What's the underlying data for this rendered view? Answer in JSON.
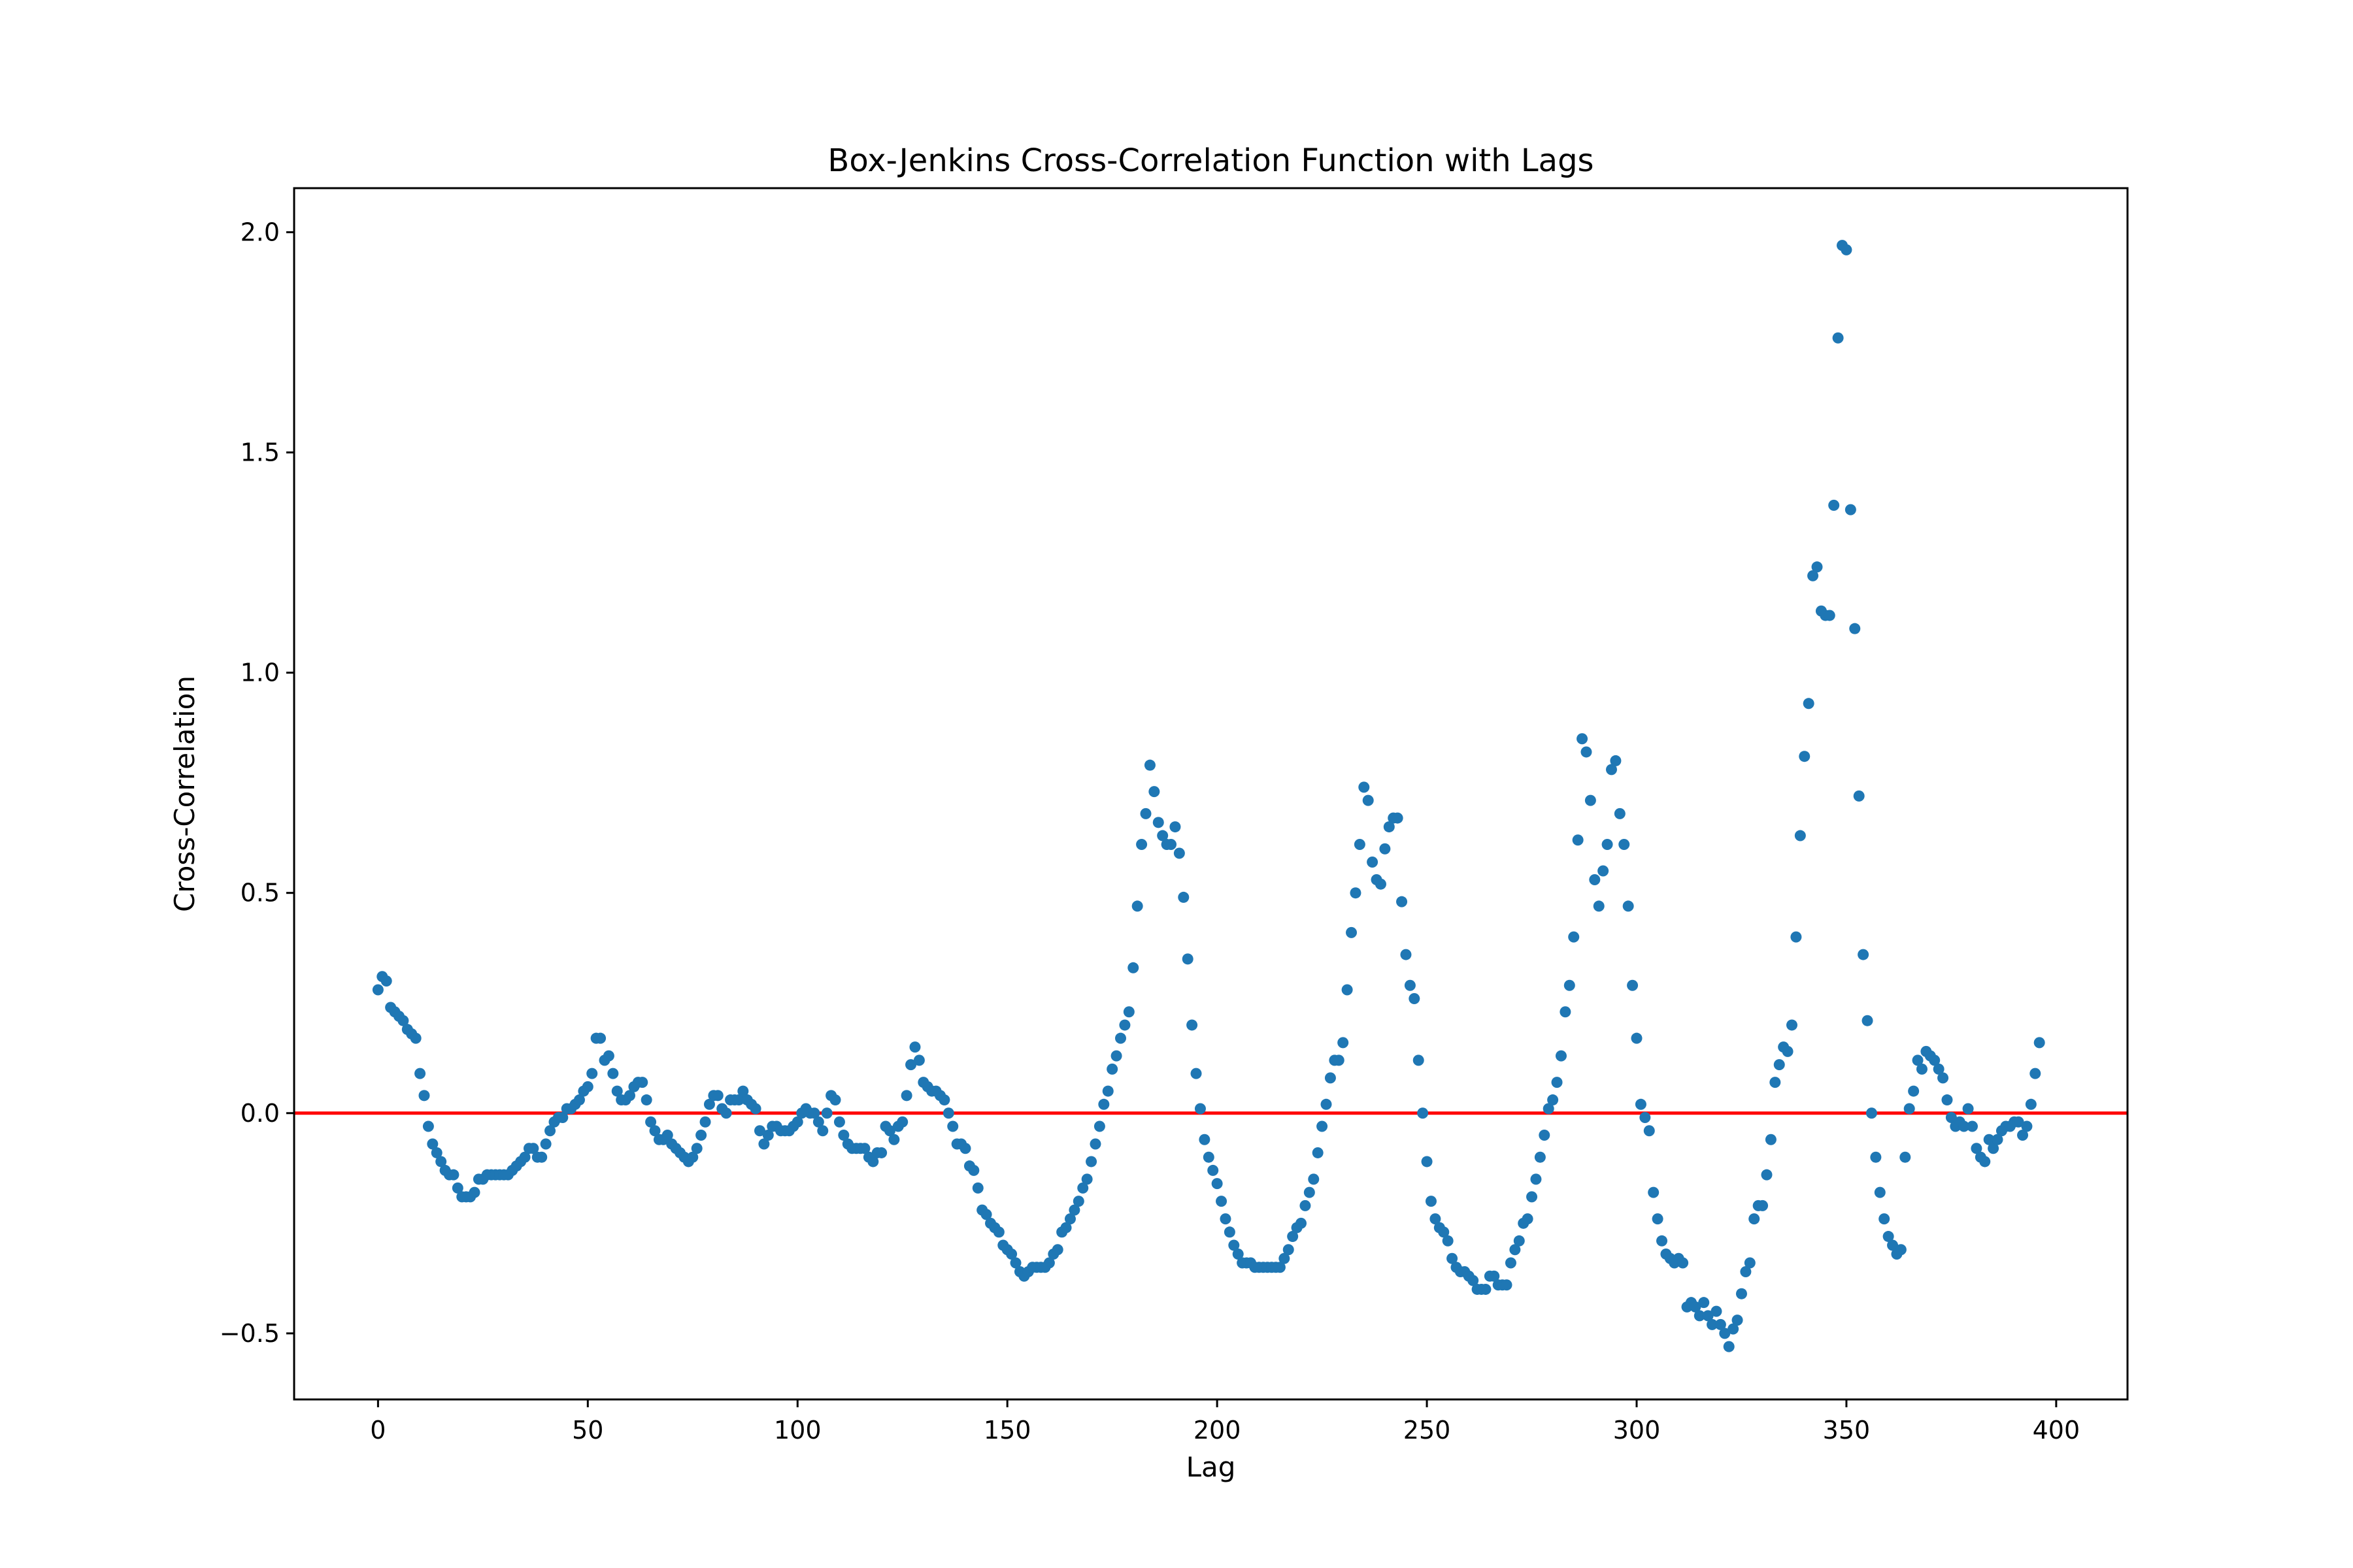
{
  "chart_data": {
    "type": "scatter",
    "title": "Box-Jenkins Cross-Correlation Function with Lags",
    "xlabel": "Lag",
    "ylabel": "Cross-Correlation",
    "xlim": [
      -20,
      417
    ],
    "ylim": [
      -0.65,
      2.1
    ],
    "xticks": [
      0,
      50,
      100,
      150,
      200,
      250,
      300,
      350,
      400
    ],
    "xtick_labels": [
      "0",
      "50",
      "100",
      "150",
      "200",
      "250",
      "300",
      "350",
      "400"
    ],
    "yticks": [
      -0.5,
      0.0,
      0.5,
      1.0,
      1.5,
      2.0
    ],
    "ytick_labels": [
      "−0.5",
      "0.0",
      "0.5",
      "1.0",
      "1.5",
      "2.0"
    ],
    "grid": false,
    "reference_line": {
      "y": 0.0,
      "color": "#ff0000"
    },
    "point_color": "#1f77b4",
    "points": [
      [
        0,
        0.28
      ],
      [
        1,
        0.31
      ],
      [
        2,
        0.3
      ],
      [
        3,
        0.24
      ],
      [
        4,
        0.23
      ],
      [
        5,
        0.22
      ],
      [
        6,
        0.21
      ],
      [
        7,
        0.19
      ],
      [
        8,
        0.18
      ],
      [
        9,
        0.17
      ],
      [
        10,
        0.09
      ],
      [
        11,
        0.04
      ],
      [
        12,
        -0.03
      ],
      [
        13,
        -0.07
      ],
      [
        14,
        -0.09
      ],
      [
        15,
        -0.11
      ],
      [
        16,
        -0.13
      ],
      [
        17,
        -0.14
      ],
      [
        18,
        -0.14
      ],
      [
        19,
        -0.17
      ],
      [
        20,
        -0.19
      ],
      [
        21,
        -0.19
      ],
      [
        22,
        -0.19
      ],
      [
        23,
        -0.18
      ],
      [
        24,
        -0.15
      ],
      [
        25,
        -0.15
      ],
      [
        26,
        -0.14
      ],
      [
        27,
        -0.14
      ],
      [
        28,
        -0.14
      ],
      [
        29,
        -0.14
      ],
      [
        30,
        -0.14
      ],
      [
        31,
        -0.14
      ],
      [
        32,
        -0.13
      ],
      [
        33,
        -0.12
      ],
      [
        34,
        -0.11
      ],
      [
        35,
        -0.1
      ],
      [
        36,
        -0.08
      ],
      [
        37,
        -0.08
      ],
      [
        38,
        -0.1
      ],
      [
        39,
        -0.1
      ],
      [
        40,
        -0.07
      ],
      [
        41,
        -0.04
      ],
      [
        42,
        -0.02
      ],
      [
        43,
        -0.01
      ],
      [
        44,
        -0.01
      ],
      [
        45,
        0.01
      ],
      [
        46,
        0.01
      ],
      [
        47,
        0.02
      ],
      [
        48,
        0.03
      ],
      [
        49,
        0.05
      ],
      [
        50,
        0.06
      ],
      [
        51,
        0.09
      ],
      [
        52,
        0.17
      ],
      [
        53,
        0.17
      ],
      [
        54,
        0.12
      ],
      [
        55,
        0.13
      ],
      [
        56,
        0.09
      ],
      [
        57,
        0.05
      ],
      [
        58,
        0.03
      ],
      [
        59,
        0.03
      ],
      [
        60,
        0.04
      ],
      [
        61,
        0.06
      ],
      [
        62,
        0.07
      ],
      [
        63,
        0.07
      ],
      [
        64,
        0.03
      ],
      [
        65,
        -0.02
      ],
      [
        66,
        -0.04
      ],
      [
        67,
        -0.06
      ],
      [
        68,
        -0.06
      ],
      [
        69,
        -0.05
      ],
      [
        70,
        -0.07
      ],
      [
        71,
        -0.08
      ],
      [
        72,
        -0.09
      ],
      [
        73,
        -0.1
      ],
      [
        74,
        -0.11
      ],
      [
        75,
        -0.1
      ],
      [
        76,
        -0.08
      ],
      [
        77,
        -0.05
      ],
      [
        78,
        -0.02
      ],
      [
        79,
        0.02
      ],
      [
        80,
        0.04
      ],
      [
        81,
        0.04
      ],
      [
        82,
        0.01
      ],
      [
        83,
        0.0
      ],
      [
        84,
        0.03
      ],
      [
        85,
        0.03
      ],
      [
        86,
        0.03
      ],
      [
        87,
        0.05
      ],
      [
        88,
        0.03
      ],
      [
        89,
        0.02
      ],
      [
        90,
        0.01
      ],
      [
        91,
        -0.04
      ],
      [
        92,
        -0.07
      ],
      [
        93,
        -0.05
      ],
      [
        94,
        -0.03
      ],
      [
        95,
        -0.03
      ],
      [
        96,
        -0.04
      ],
      [
        97,
        -0.04
      ],
      [
        98,
        -0.04
      ],
      [
        99,
        -0.03
      ],
      [
        100,
        -0.02
      ],
      [
        101,
        0.0
      ],
      [
        102,
        0.01
      ],
      [
        103,
        0.0
      ],
      [
        104,
        0.0
      ],
      [
        105,
        -0.02
      ],
      [
        106,
        -0.04
      ],
      [
        107,
        0.0
      ],
      [
        108,
        0.04
      ],
      [
        109,
        0.03
      ],
      [
        110,
        -0.02
      ],
      [
        111,
        -0.05
      ],
      [
        112,
        -0.07
      ],
      [
        113,
        -0.08
      ],
      [
        114,
        -0.08
      ],
      [
        115,
        -0.08
      ],
      [
        116,
        -0.08
      ],
      [
        117,
        -0.1
      ],
      [
        118,
        -0.11
      ],
      [
        119,
        -0.09
      ],
      [
        120,
        -0.09
      ],
      [
        121,
        -0.03
      ],
      [
        122,
        -0.04
      ],
      [
        123,
        -0.06
      ],
      [
        124,
        -0.03
      ],
      [
        125,
        -0.02
      ],
      [
        126,
        0.04
      ],
      [
        127,
        0.11
      ],
      [
        128,
        0.15
      ],
      [
        129,
        0.12
      ],
      [
        130,
        0.07
      ],
      [
        131,
        0.06
      ],
      [
        132,
        0.05
      ],
      [
        133,
        0.05
      ],
      [
        134,
        0.04
      ],
      [
        135,
        0.03
      ],
      [
        136,
        0.0
      ],
      [
        137,
        -0.03
      ],
      [
        138,
        -0.07
      ],
      [
        139,
        -0.07
      ],
      [
        140,
        -0.08
      ],
      [
        141,
        -0.12
      ],
      [
        142,
        -0.13
      ],
      [
        143,
        -0.17
      ],
      [
        144,
        -0.22
      ],
      [
        145,
        -0.23
      ],
      [
        146,
        -0.25
      ],
      [
        147,
        -0.26
      ],
      [
        148,
        -0.27
      ],
      [
        149,
        -0.3
      ],
      [
        150,
        -0.31
      ],
      [
        151,
        -0.32
      ],
      [
        152,
        -0.34
      ],
      [
        153,
        -0.36
      ],
      [
        154,
        -0.37
      ],
      [
        155,
        -0.36
      ],
      [
        156,
        -0.35
      ],
      [
        157,
        -0.35
      ],
      [
        158,
        -0.35
      ],
      [
        159,
        -0.35
      ],
      [
        160,
        -0.34
      ],
      [
        161,
        -0.32
      ],
      [
        162,
        -0.31
      ],
      [
        163,
        -0.27
      ],
      [
        164,
        -0.26
      ],
      [
        165,
        -0.24
      ],
      [
        166,
        -0.22
      ],
      [
        167,
        -0.2
      ],
      [
        168,
        -0.17
      ],
      [
        169,
        -0.15
      ],
      [
        170,
        -0.11
      ],
      [
        171,
        -0.07
      ],
      [
        172,
        -0.03
      ],
      [
        173,
        0.02
      ],
      [
        174,
        0.05
      ],
      [
        175,
        0.1
      ],
      [
        176,
        0.13
      ],
      [
        177,
        0.17
      ],
      [
        178,
        0.2
      ],
      [
        179,
        0.23
      ],
      [
        180,
        0.33
      ],
      [
        181,
        0.47
      ],
      [
        182,
        0.61
      ],
      [
        183,
        0.68
      ],
      [
        184,
        0.79
      ],
      [
        185,
        0.73
      ],
      [
        186,
        0.66
      ],
      [
        187,
        0.63
      ],
      [
        188,
        0.61
      ],
      [
        189,
        0.61
      ],
      [
        190,
        0.65
      ],
      [
        191,
        0.59
      ],
      [
        192,
        0.49
      ],
      [
        193,
        0.35
      ],
      [
        194,
        0.2
      ],
      [
        195,
        0.09
      ],
      [
        196,
        0.01
      ],
      [
        197,
        -0.06
      ],
      [
        198,
        -0.1
      ],
      [
        199,
        -0.13
      ],
      [
        200,
        -0.16
      ],
      [
        201,
        -0.2
      ],
      [
        202,
        -0.24
      ],
      [
        203,
        -0.27
      ],
      [
        204,
        -0.3
      ],
      [
        205,
        -0.32
      ],
      [
        206,
        -0.34
      ],
      [
        207,
        -0.34
      ],
      [
        208,
        -0.34
      ],
      [
        209,
        -0.35
      ],
      [
        210,
        -0.35
      ],
      [
        211,
        -0.35
      ],
      [
        212,
        -0.35
      ],
      [
        213,
        -0.35
      ],
      [
        214,
        -0.35
      ],
      [
        215,
        -0.35
      ],
      [
        216,
        -0.33
      ],
      [
        217,
        -0.31
      ],
      [
        218,
        -0.28
      ],
      [
        219,
        -0.26
      ],
      [
        220,
        -0.25
      ],
      [
        221,
        -0.21
      ],
      [
        222,
        -0.18
      ],
      [
        223,
        -0.15
      ],
      [
        224,
        -0.09
      ],
      [
        225,
        -0.03
      ],
      [
        226,
        0.02
      ],
      [
        227,
        0.08
      ],
      [
        228,
        0.12
      ],
      [
        229,
        0.12
      ],
      [
        230,
        0.16
      ],
      [
        231,
        0.28
      ],
      [
        232,
        0.41
      ],
      [
        233,
        0.5
      ],
      [
        234,
        0.61
      ],
      [
        235,
        0.74
      ],
      [
        236,
        0.71
      ],
      [
        237,
        0.57
      ],
      [
        238,
        0.53
      ],
      [
        239,
        0.52
      ],
      [
        240,
        0.6
      ],
      [
        241,
        0.65
      ],
      [
        242,
        0.67
      ],
      [
        243,
        0.67
      ],
      [
        244,
        0.48
      ],
      [
        245,
        0.36
      ],
      [
        246,
        0.29
      ],
      [
        247,
        0.26
      ],
      [
        248,
        0.12
      ],
      [
        249,
        0.0
      ],
      [
        250,
        -0.11
      ],
      [
        251,
        -0.2
      ],
      [
        252,
        -0.24
      ],
      [
        253,
        -0.26
      ],
      [
        254,
        -0.27
      ],
      [
        255,
        -0.29
      ],
      [
        256,
        -0.33
      ],
      [
        257,
        -0.35
      ],
      [
        258,
        -0.36
      ],
      [
        259,
        -0.36
      ],
      [
        260,
        -0.37
      ],
      [
        261,
        -0.38
      ],
      [
        262,
        -0.4
      ],
      [
        263,
        -0.4
      ],
      [
        264,
        -0.4
      ],
      [
        265,
        -0.37
      ],
      [
        266,
        -0.37
      ],
      [
        267,
        -0.39
      ],
      [
        268,
        -0.39
      ],
      [
        269,
        -0.39
      ],
      [
        270,
        -0.34
      ],
      [
        271,
        -0.31
      ],
      [
        272,
        -0.29
      ],
      [
        273,
        -0.25
      ],
      [
        274,
        -0.24
      ],
      [
        275,
        -0.19
      ],
      [
        276,
        -0.15
      ],
      [
        277,
        -0.1
      ],
      [
        278,
        -0.05
      ],
      [
        279,
        0.01
      ],
      [
        280,
        0.03
      ],
      [
        281,
        0.07
      ],
      [
        282,
        0.13
      ],
      [
        283,
        0.23
      ],
      [
        284,
        0.29
      ],
      [
        285,
        0.4
      ],
      [
        286,
        0.62
      ],
      [
        287,
        0.85
      ],
      [
        288,
        0.82
      ],
      [
        289,
        0.71
      ],
      [
        290,
        0.53
      ],
      [
        291,
        0.47
      ],
      [
        292,
        0.55
      ],
      [
        293,
        0.61
      ],
      [
        294,
        0.78
      ],
      [
        295,
        0.8
      ],
      [
        296,
        0.68
      ],
      [
        297,
        0.61
      ],
      [
        298,
        0.47
      ],
      [
        299,
        0.29
      ],
      [
        300,
        0.17
      ],
      [
        301,
        0.02
      ],
      [
        302,
        -0.01
      ],
      [
        303,
        -0.04
      ],
      [
        304,
        -0.18
      ],
      [
        305,
        -0.24
      ],
      [
        306,
        -0.29
      ],
      [
        307,
        -0.32
      ],
      [
        308,
        -0.33
      ],
      [
        309,
        -0.34
      ],
      [
        310,
        -0.33
      ],
      [
        311,
        -0.34
      ],
      [
        312,
        -0.44
      ],
      [
        313,
        -0.43
      ],
      [
        314,
        -0.44
      ],
      [
        315,
        -0.46
      ],
      [
        316,
        -0.43
      ],
      [
        317,
        -0.46
      ],
      [
        318,
        -0.48
      ],
      [
        319,
        -0.45
      ],
      [
        320,
        -0.48
      ],
      [
        321,
        -0.5
      ],
      [
        322,
        -0.53
      ],
      [
        323,
        -0.49
      ],
      [
        324,
        -0.47
      ],
      [
        325,
        -0.41
      ],
      [
        326,
        -0.36
      ],
      [
        327,
        -0.34
      ],
      [
        328,
        -0.24
      ],
      [
        329,
        -0.21
      ],
      [
        330,
        -0.21
      ],
      [
        331,
        -0.14
      ],
      [
        332,
        -0.06
      ],
      [
        333,
        0.07
      ],
      [
        334,
        0.11
      ],
      [
        335,
        0.15
      ],
      [
        336,
        0.14
      ],
      [
        337,
        0.2
      ],
      [
        338,
        0.4
      ],
      [
        339,
        0.63
      ],
      [
        340,
        0.81
      ],
      [
        341,
        0.93
      ],
      [
        342,
        1.22
      ],
      [
        343,
        1.24
      ],
      [
        344,
        1.14
      ],
      [
        345,
        1.13
      ],
      [
        346,
        1.13
      ],
      [
        347,
        1.38
      ],
      [
        348,
        1.76
      ],
      [
        349,
        1.97
      ],
      [
        350,
        1.96
      ],
      [
        351,
        1.37
      ],
      [
        352,
        1.1
      ],
      [
        353,
        0.72
      ],
      [
        354,
        0.36
      ],
      [
        355,
        0.21
      ],
      [
        356,
        0.0
      ],
      [
        357,
        -0.1
      ],
      [
        358,
        -0.18
      ],
      [
        359,
        -0.24
      ],
      [
        360,
        -0.28
      ],
      [
        361,
        -0.3
      ],
      [
        362,
        -0.32
      ],
      [
        363,
        -0.31
      ],
      [
        364,
        -0.1
      ],
      [
        365,
        0.01
      ],
      [
        366,
        0.05
      ],
      [
        367,
        0.12
      ],
      [
        368,
        0.1
      ],
      [
        369,
        0.14
      ],
      [
        370,
        0.13
      ],
      [
        371,
        0.12
      ],
      [
        372,
        0.1
      ],
      [
        373,
        0.08
      ],
      [
        374,
        0.03
      ],
      [
        375,
        -0.01
      ],
      [
        376,
        -0.03
      ],
      [
        377,
        -0.02
      ],
      [
        378,
        -0.03
      ],
      [
        379,
        0.01
      ],
      [
        380,
        -0.03
      ],
      [
        381,
        -0.08
      ],
      [
        382,
        -0.1
      ],
      [
        383,
        -0.11
      ],
      [
        384,
        -0.06
      ],
      [
        385,
        -0.08
      ],
      [
        386,
        -0.06
      ],
      [
        387,
        -0.04
      ],
      [
        388,
        -0.03
      ],
      [
        389,
        -0.03
      ],
      [
        390,
        -0.02
      ],
      [
        391,
        -0.02
      ],
      [
        392,
        -0.05
      ],
      [
        393,
        -0.03
      ],
      [
        394,
        0.02
      ],
      [
        395,
        0.09
      ],
      [
        396,
        0.16
      ]
    ]
  }
}
